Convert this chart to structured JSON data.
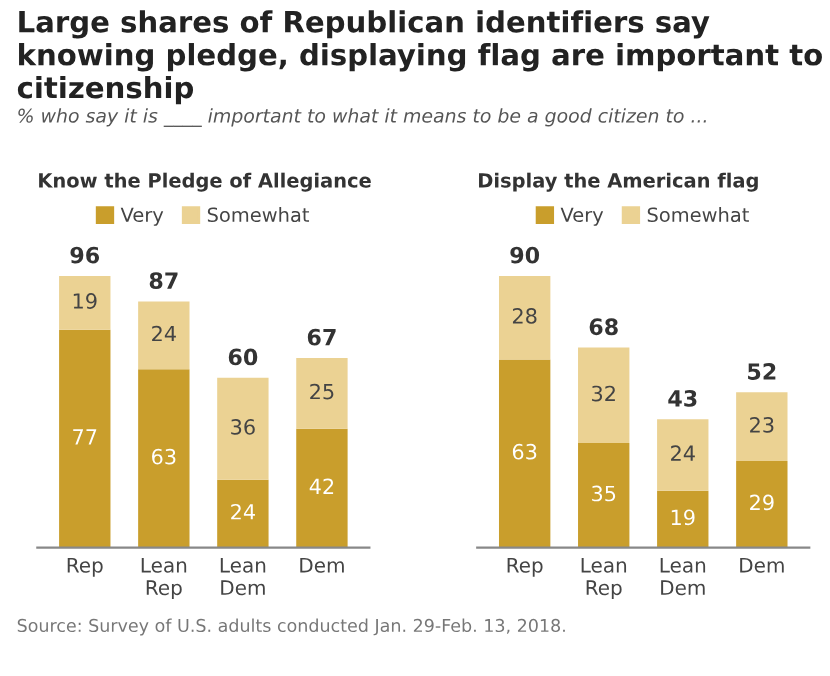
{
  "chart_data": [
    {
      "type": "other",
      "title": "Large shares of Republican identifiers say knowing pledge, displaying flag are important to citizenship",
      "subtitle": "% who say it is ____ important to what it means to be a good citizen to ...",
      "annotations": [
        "Source: Survey of U.S. adults conducted Jan. 29-Feb. 13, 2018."
      ]
    },
    {
      "type": "bar",
      "title": "Know the Pledge of Allegiance",
      "categories": [
        "Rep",
        "Lean Rep",
        "Lean Dem",
        "Dem"
      ],
      "stacked": true,
      "data_labels": true,
      "legend": "top",
      "series": [
        {
          "name": "Very",
          "color": "#c99e2c",
          "values": [
            77,
            63,
            24,
            42
          ]
        },
        {
          "name": "Somewhat",
          "color": "#ebd293",
          "values": [
            19,
            24,
            36,
            25
          ]
        }
      ],
      "totals": [
        "96",
        "87",
        "60",
        "67"
      ]
    },
    {
      "type": "bar",
      "title": "Display the American flag",
      "categories": [
        "Rep",
        "Lean Rep",
        "Lean Dem",
        "Dem"
      ],
      "stacked": true,
      "data_labels": true,
      "legend": "top",
      "series": [
        {
          "name": "Very",
          "color": "#c99e2c",
          "values": [
            63,
            35,
            19,
            29
          ]
        },
        {
          "name": "Somewhat",
          "color": "#ebd293",
          "values": [
            28,
            32,
            24,
            23
          ]
        }
      ],
      "totals": [
        "90",
        "68",
        "43",
        "52"
      ]
    }
  ]
}
